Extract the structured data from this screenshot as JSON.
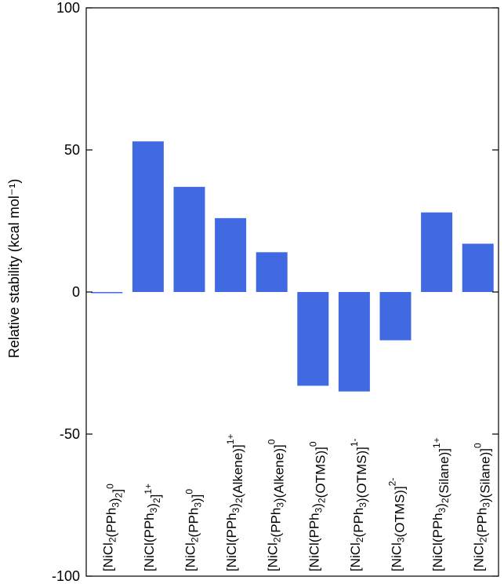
{
  "chart_data": {
    "type": "bar",
    "ylabel": "Relative stability (kcal mol⁻¹)",
    "ylim": [
      -100,
      100
    ],
    "yticks": [
      100,
      50,
      0,
      -50,
      -100
    ],
    "grid": false,
    "bar_color": "#4169e1",
    "categories": [
      "[NiCl2(PPh3)2]0",
      "[NiCl(PPh3)2]1+",
      "[NiCl2(PPh3)]0",
      "[NiCl(PPh3)2(Alkene)]1+",
      "[NiCl2(PPh3)(Alkene)]0",
      "[NiCl(PPh3)2(OTMS)]0",
      "[NiCl2(PPh3)(OTMS)]1-",
      "[NiCl3(OTMS)]2-",
      "[NiCl(PPh3)2(Silane)]1+",
      "[NiCl2(PPh3)(Silane)]0"
    ],
    "category_parts": [
      [
        [
          "[NiCl",
          ""
        ],
        [
          "2",
          "sub"
        ],
        [
          "(PPh",
          ""
        ],
        [
          "3",
          "sub"
        ],
        [
          ")",
          ""
        ],
        [
          "2",
          "sub"
        ],
        [
          "]",
          ""
        ],
        [
          "0",
          "sup"
        ]
      ],
      [
        [
          "[NiCl(PPh",
          ""
        ],
        [
          "3",
          "sub"
        ],
        [
          ")",
          ""
        ],
        [
          "2",
          "sub"
        ],
        [
          "]",
          ""
        ],
        [
          "1+",
          "sup"
        ]
      ],
      [
        [
          "[NiCl",
          ""
        ],
        [
          "2",
          "sub"
        ],
        [
          "(PPh",
          ""
        ],
        [
          "3",
          "sub"
        ],
        [
          ")]",
          ""
        ],
        [
          "0",
          "sup"
        ]
      ],
      [
        [
          "[NiCl(PPh",
          ""
        ],
        [
          "3",
          "sub"
        ],
        [
          ")",
          ""
        ],
        [
          "2",
          "sub"
        ],
        [
          "(Alkene)]",
          ""
        ],
        [
          "1+",
          "sup"
        ]
      ],
      [
        [
          "[NiCl",
          ""
        ],
        [
          "2",
          "sub"
        ],
        [
          "(PPh",
          ""
        ],
        [
          "3",
          "sub"
        ],
        [
          ")(Alkene)]",
          ""
        ],
        [
          "0",
          "sup"
        ]
      ],
      [
        [
          "[NiCl(PPh",
          ""
        ],
        [
          "3",
          "sub"
        ],
        [
          ")",
          ""
        ],
        [
          "2",
          "sub"
        ],
        [
          "(OTMS)]",
          ""
        ],
        [
          "0",
          "sup"
        ]
      ],
      [
        [
          "[NiCl",
          ""
        ],
        [
          "2",
          "sub"
        ],
        [
          "(PPh",
          ""
        ],
        [
          "3",
          "sub"
        ],
        [
          ")(OTMS)]",
          ""
        ],
        [
          "1-",
          "sup"
        ]
      ],
      [
        [
          "[NiCl",
          ""
        ],
        [
          "3",
          "sub"
        ],
        [
          "(OTMS)]",
          ""
        ],
        [
          "2-",
          "sup"
        ]
      ],
      [
        [
          "[NiCl(PPh",
          ""
        ],
        [
          "3",
          "sub"
        ],
        [
          ")",
          ""
        ],
        [
          "2",
          "sub"
        ],
        [
          "(Silane)]",
          ""
        ],
        [
          "1+",
          "sup"
        ]
      ],
      [
        [
          "[NiCl",
          ""
        ],
        [
          "2",
          "sub"
        ],
        [
          "(PPh",
          ""
        ],
        [
          "3",
          "sub"
        ],
        [
          ")(Silane)]",
          ""
        ],
        [
          "0",
          "sup"
        ]
      ]
    ],
    "values": [
      0,
      53,
      37,
      26,
      14,
      -33,
      -35,
      -17,
      28,
      17
    ]
  }
}
